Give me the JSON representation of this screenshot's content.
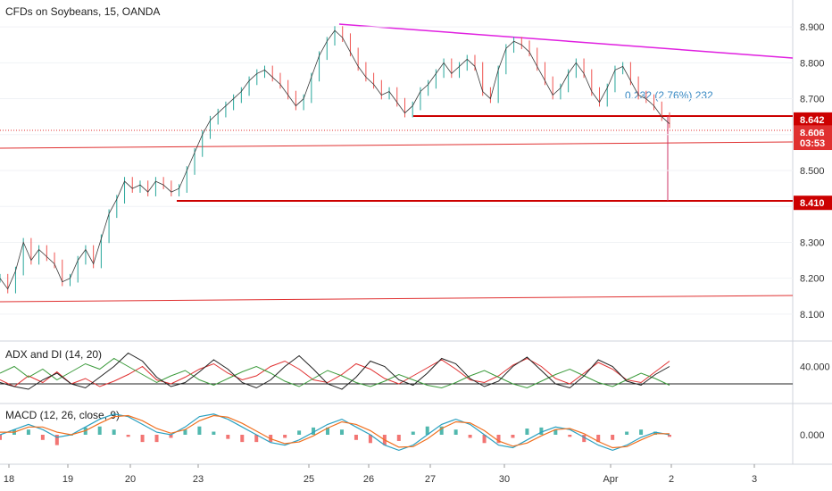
{
  "chart_data": [
    {
      "type": "line",
      "title": "CFDs on Soybeans, 15, OANDA",
      "ylim": [
        8.05,
        8.95
      ],
      "y_ticks": [
        "8.100",
        "8.200",
        "8.300",
        "8.400",
        "8.500",
        "8.600",
        "8.700",
        "8.800",
        "8.900"
      ],
      "y_tick_values": [
        8.1,
        8.2,
        8.3,
        8.4,
        8.5,
        8.6,
        8.7,
        8.8,
        8.9
      ],
      "x_ticks": [
        "18",
        "19",
        "20",
        "23",
        "25",
        "26",
        "27",
        "30",
        "Apr",
        "2",
        "3"
      ],
      "price_labels": [
        {
          "text": "8.642",
          "value": 8.642,
          "color": "#cc0000"
        },
        {
          "text": "8.606",
          "value": 8.606,
          "color": "#e03030"
        },
        {
          "text": "03:53",
          "value": 8.577,
          "color": "#e03030"
        },
        {
          "text": "8.410",
          "value": 8.41,
          "color": "#cc0000"
        }
      ],
      "measurement_label": "0.232 (2.76%) 232",
      "series": [
        {
          "values": [
            8.2,
            8.17,
            8.22,
            8.3,
            8.25,
            8.28,
            8.26,
            8.24,
            8.19,
            8.2,
            8.25,
            8.28,
            8.24,
            8.31,
            8.38,
            8.42,
            8.47,
            8.45,
            8.46,
            8.44,
            8.47,
            8.46,
            8.44,
            8.45,
            8.5,
            8.55,
            8.6,
            8.64,
            8.66,
            8.68,
            8.7,
            8.72,
            8.75,
            8.77,
            8.78,
            8.76,
            8.74,
            8.71,
            8.68,
            8.7,
            8.76,
            8.82,
            8.86,
            8.89,
            8.87,
            8.83,
            8.79,
            8.76,
            8.74,
            8.71,
            8.72,
            8.69,
            8.66,
            8.68,
            8.72,
            8.74,
            8.77,
            8.8,
            8.77,
            8.79,
            8.81,
            8.79,
            8.72,
            8.7,
            8.78,
            8.84,
            8.86,
            8.85,
            8.83,
            8.79,
            8.75,
            8.71,
            8.73,
            8.77,
            8.8,
            8.77,
            8.72,
            8.69,
            8.73,
            8.78,
            8.79,
            8.75,
            8.71,
            8.7,
            8.68,
            8.65,
            8.63
          ]
        }
      ]
    },
    {
      "type": "line",
      "title": "ADX and DI (14, 20)",
      "y_ticks": [
        "40.000"
      ],
      "y_tick_values": [
        40
      ],
      "ylim": [
        15,
        55
      ],
      "series": [
        {
          "color": "#e03030",
          "values": [
            30,
            25,
            33,
            28,
            36,
            27,
            31,
            25,
            29,
            34,
            40,
            30,
            27,
            32,
            38,
            42,
            35,
            30,
            33,
            40,
            44,
            38,
            30,
            28,
            34,
            42,
            38,
            31,
            27,
            33,
            39,
            45,
            38,
            30,
            28,
            33,
            41,
            46,
            40,
            31,
            27,
            35,
            43,
            38,
            30,
            28,
            36,
            44
          ]
        },
        {
          "color": "#3a9a3a",
          "values": [
            35,
            40,
            32,
            38,
            30,
            36,
            42,
            38,
            46,
            40,
            34,
            28,
            33,
            37,
            30,
            26,
            31,
            36,
            40,
            35,
            29,
            25,
            31,
            37,
            33,
            28,
            25,
            29,
            34,
            30,
            26,
            24,
            28,
            33,
            37,
            32,
            27,
            24,
            29,
            34,
            38,
            33,
            28,
            25,
            30,
            35,
            31,
            26
          ]
        },
        {
          "color": "#222222",
          "values": [
            28,
            25,
            23,
            30,
            35,
            27,
            24,
            32,
            40,
            50,
            44,
            32,
            25,
            28,
            36,
            45,
            38,
            28,
            24,
            30,
            40,
            48,
            38,
            27,
            23,
            32,
            44,
            40,
            30,
            26,
            35,
            46,
            42,
            31,
            25,
            29,
            40,
            47,
            37,
            27,
            24,
            33,
            45,
            40,
            29,
            26,
            34,
            40
          ]
        }
      ]
    },
    {
      "type": "line",
      "title": "MACD (12, 26, close, 9)",
      "y_ticks": [
        "0.000"
      ],
      "y_tick_values": [
        0
      ],
      "ylim": [
        -0.05,
        0.05
      ],
      "series": [
        {
          "color": "#2aa0c0",
          "values": [
            0.0,
            0.01,
            0.02,
            0.01,
            -0.005,
            0.0,
            0.015,
            0.03,
            0.04,
            0.035,
            0.02,
            0.005,
            0.0,
            0.015,
            0.035,
            0.04,
            0.03,
            0.015,
            0.0,
            -0.015,
            -0.02,
            -0.01,
            0.005,
            0.02,
            0.03,
            0.015,
            0.0,
            -0.02,
            -0.03,
            -0.02,
            0.0,
            0.02,
            0.03,
            0.02,
            0.0,
            -0.02,
            -0.025,
            -0.01,
            0.005,
            0.015,
            0.01,
            -0.005,
            -0.02,
            -0.03,
            -0.02,
            -0.005,
            0.005,
            0.0
          ]
        },
        {
          "color": "#f07020",
          "values": [
            0.005,
            0.005,
            0.015,
            0.015,
            0.005,
            0.0,
            0.008,
            0.022,
            0.035,
            0.037,
            0.027,
            0.012,
            0.003,
            0.01,
            0.027,
            0.037,
            0.034,
            0.022,
            0.007,
            -0.008,
            -0.017,
            -0.014,
            -0.002,
            0.013,
            0.025,
            0.02,
            0.008,
            -0.01,
            -0.024,
            -0.023,
            -0.008,
            0.012,
            0.025,
            0.023,
            0.008,
            -0.012,
            -0.022,
            -0.016,
            -0.002,
            0.01,
            0.012,
            0.002,
            -0.013,
            -0.025,
            -0.023,
            -0.01,
            0.002,
            0.002
          ]
        }
      ]
    }
  ]
}
